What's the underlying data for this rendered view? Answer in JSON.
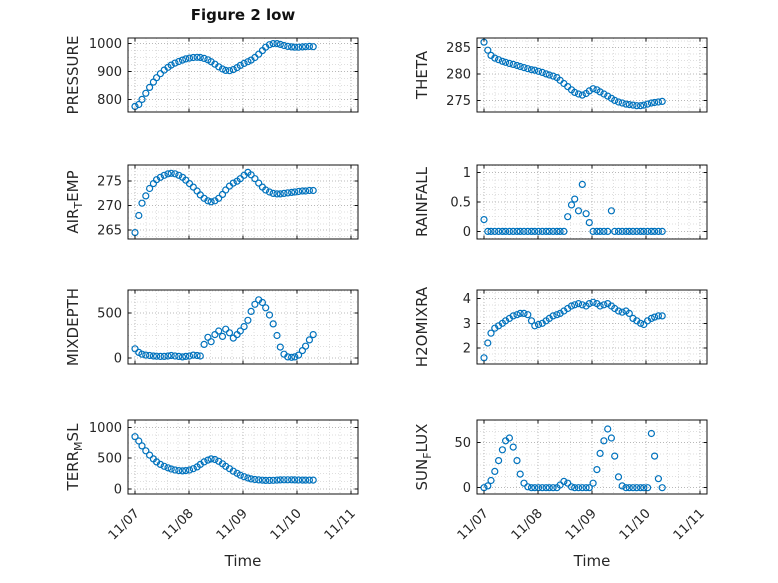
{
  "figure": {
    "title": "Figure 2 low",
    "xlabel": "Time",
    "marker_color": "#0072BD",
    "axes_color": "#111111",
    "grid_major_color": "#b8b8b8",
    "grid_minor_color": "#dedede"
  },
  "x_axis": {
    "xlim": [
      -0.13,
      4.13
    ],
    "ticks": [
      0,
      1,
      2,
      3,
      4
    ],
    "tick_labels": [
      "11/07",
      "11/08",
      "11/09",
      "11/10",
      "11/11"
    ],
    "label": "Time",
    "sample_times_days": [
      0,
      0.07,
      0.13,
      0.2,
      0.27,
      0.34,
      0.4,
      0.47,
      0.54,
      0.61,
      0.67,
      0.74,
      0.81,
      0.88,
      0.94,
      1.01,
      1.08,
      1.15,
      1.21,
      1.28,
      1.35,
      1.41,
      1.48,
      1.55,
      1.62,
      1.68,
      1.75,
      1.82,
      1.89,
      1.95,
      2.02,
      2.09,
      2.15,
      2.22,
      2.29,
      2.36,
      2.42,
      2.49,
      2.56,
      2.63,
      2.69,
      2.76,
      2.83,
      2.9,
      2.96,
      3.03,
      3.1,
      3.16,
      3.23,
      3.3
    ]
  },
  "chart_data": [
    {
      "type": "scatter",
      "series": "PRESSURE",
      "ylabel": {
        "pre": "PRESSURE",
        "sub": "",
        "post": ""
      },
      "ylim": [
        755,
        1020
      ],
      "yticks": [
        800,
        900,
        1000
      ],
      "y": [
        775,
        782,
        800,
        822,
        843,
        862,
        878,
        892,
        905,
        915,
        923,
        930,
        936,
        941,
        945,
        948,
        950,
        951,
        950,
        947,
        942,
        935,
        926,
        917,
        909,
        904,
        903,
        907,
        914,
        922,
        929,
        935,
        941,
        950,
        962,
        975,
        987,
        996,
        1000,
        1000,
        997,
        993,
        990,
        988,
        987,
        987,
        988,
        989,
        990,
        989
      ]
    },
    {
      "type": "scatter",
      "series": "THETA",
      "ylabel": {
        "pre": "THETA",
        "sub": "",
        "post": ""
      },
      "ylim": [
        272.8,
        286.8
      ],
      "yticks": [
        275,
        280,
        285
      ],
      "y": [
        286,
        284.5,
        283.5,
        283.0,
        282.7,
        282.4,
        282.2,
        282.0,
        281.8,
        281.6,
        281.4,
        281.2,
        281.0,
        280.8,
        280.7,
        280.5,
        280.3,
        280.0,
        279.8,
        279.6,
        279.3,
        278.8,
        278.2,
        277.6,
        277.0,
        276.5,
        276.2,
        276.0,
        276.3,
        276.8,
        277.2,
        277.0,
        276.6,
        276.2,
        275.8,
        275.4,
        275.0,
        274.7,
        274.5,
        274.3,
        274.2,
        274.1,
        274.0,
        274.0,
        274.1,
        274.3,
        274.5,
        274.6,
        274.7,
        274.8
      ]
    },
    {
      "type": "scatter",
      "series": "AIRTEMP",
      "ylabel": {
        "pre": "AIR",
        "sub": "T",
        "post": "EMP"
      },
      "ylim": [
        263.2,
        278.3
      ],
      "yticks": [
        265,
        270,
        275
      ],
      "y": [
        264.5,
        268,
        270.5,
        272,
        273.5,
        274.5,
        275.3,
        275.8,
        276.2,
        276.5,
        276.6,
        276.5,
        276.2,
        275.8,
        275.2,
        274.5,
        273.8,
        273.0,
        272.2,
        271.5,
        271.0,
        270.8,
        271.0,
        271.5,
        272.3,
        273.2,
        274.0,
        274.6,
        275.0,
        275.5,
        276.2,
        276.8,
        276.3,
        275.5,
        274.6,
        273.8,
        273.2,
        272.8,
        272.5,
        272.4,
        272.4,
        272.5,
        272.6,
        272.7,
        272.8,
        272.9,
        273.0,
        273.0,
        273.1,
        273.1
      ]
    },
    {
      "type": "scatter",
      "series": "RAINFALL",
      "ylabel": {
        "pre": "RAINFALL",
        "sub": "",
        "post": ""
      },
      "ylim": [
        -0.13,
        1.13
      ],
      "yticks": [
        0,
        0.5,
        1
      ],
      "y": [
        0.2,
        0,
        0,
        0,
        0,
        0,
        0,
        0,
        0,
        0,
        0,
        0,
        0,
        0,
        0,
        0,
        0,
        0,
        0,
        0,
        0,
        0,
        0,
        0.25,
        0.45,
        0.55,
        0.35,
        0.8,
        0.3,
        0.15,
        0,
        0,
        0,
        0,
        0,
        0.35,
        0,
        0,
        0,
        0,
        0,
        0,
        0,
        0,
        0,
        0,
        0,
        0,
        0,
        0
      ]
    },
    {
      "type": "scatter",
      "series": "MIXDEPTH",
      "ylabel": {
        "pre": "MIXDEPTH",
        "sub": "",
        "post": ""
      },
      "ylim": [
        -70,
        760
      ],
      "yticks": [
        0,
        500
      ],
      "y": [
        100,
        60,
        40,
        30,
        25,
        20,
        18,
        15,
        15,
        20,
        25,
        20,
        15,
        10,
        15,
        20,
        30,
        25,
        20,
        150,
        230,
        180,
        260,
        300,
        240,
        320,
        280,
        220,
        260,
        300,
        350,
        420,
        520,
        600,
        650,
        620,
        560,
        480,
        380,
        250,
        120,
        40,
        10,
        5,
        10,
        30,
        80,
        130,
        200,
        260
      ]
    },
    {
      "type": "scatter",
      "series": "H2OMIXRA",
      "ylabel": {
        "pre": "H2OMIXRA",
        "sub": "",
        "post": ""
      },
      "ylim": [
        1.35,
        4.35
      ],
      "yticks": [
        2,
        3,
        4
      ],
      "y": [
        1.6,
        2.2,
        2.6,
        2.8,
        2.9,
        3.0,
        3.1,
        3.2,
        3.3,
        3.35,
        3.4,
        3.4,
        3.35,
        3.1,
        2.9,
        2.95,
        3.0,
        3.1,
        3.2,
        3.3,
        3.35,
        3.4,
        3.5,
        3.6,
        3.7,
        3.75,
        3.8,
        3.75,
        3.7,
        3.8,
        3.85,
        3.8,
        3.7,
        3.75,
        3.8,
        3.7,
        3.6,
        3.5,
        3.45,
        3.5,
        3.4,
        3.2,
        3.1,
        3.0,
        2.95,
        3.1,
        3.2,
        3.25,
        3.3,
        3.3
      ]
    },
    {
      "type": "scatter",
      "series": "TERRMSL",
      "ylabel": {
        "pre": "TERR",
        "sub": "M",
        "post": "SL"
      },
      "ylim": [
        -80,
        1120
      ],
      "yticks": [
        0,
        500,
        1000
      ],
      "y": [
        850,
        780,
        700,
        620,
        550,
        490,
        440,
        400,
        370,
        345,
        325,
        310,
        300,
        295,
        300,
        310,
        330,
        360,
        400,
        440,
        470,
        490,
        480,
        450,
        410,
        370,
        330,
        290,
        255,
        225,
        200,
        180,
        165,
        155,
        148,
        143,
        140,
        140,
        142,
        145,
        148,
        150,
        150,
        150,
        148,
        147,
        146,
        146,
        145,
        145
      ]
    },
    {
      "type": "scatter",
      "series": "SUNFLUX",
      "ylabel": {
        "pre": "SUN",
        "sub": "F",
        "post": "LUX"
      },
      "ylim": [
        -7,
        75
      ],
      "yticks": [
        0,
        50
      ],
      "y": [
        0,
        2,
        8,
        18,
        30,
        42,
        52,
        55,
        45,
        30,
        15,
        5,
        1,
        0,
        0,
        0,
        0,
        0,
        0,
        0,
        0,
        3,
        7,
        5,
        1,
        0,
        0,
        0,
        0,
        0,
        5,
        20,
        38,
        52,
        65,
        55,
        35,
        12,
        2,
        0,
        0,
        0,
        0,
        0,
        0,
        0,
        60,
        35,
        10,
        0
      ]
    }
  ]
}
